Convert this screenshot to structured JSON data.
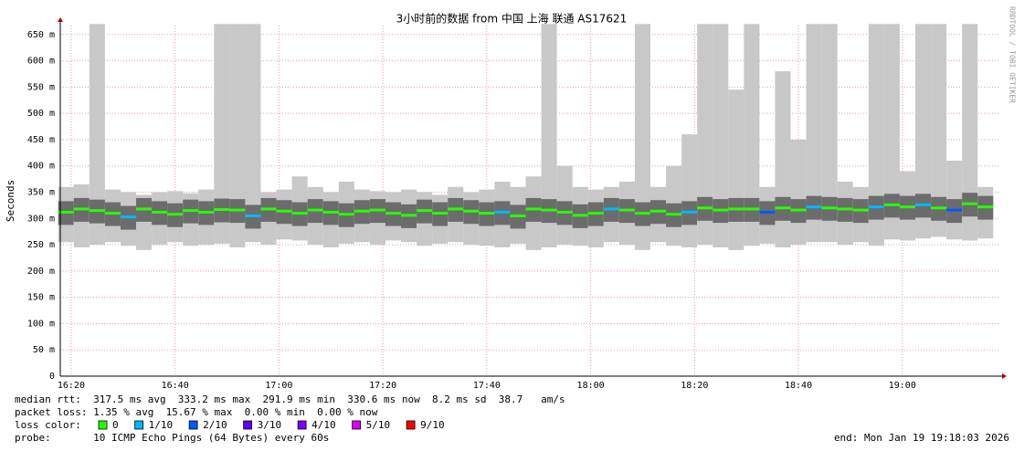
{
  "chart_data": {
    "type": "smoke",
    "title": "3小时前的数据 from 中国 上海 联通 AS17621",
    "y_label": "Seconds",
    "side_text": "RRDTOOL / TOBI OETIKER",
    "xlim": [
      977.9,
      1158.5
    ],
    "xticks": [
      {
        "value": 980,
        "label": "16:20"
      },
      {
        "value": 1000,
        "label": "16:40"
      },
      {
        "value": 1020,
        "label": "17:00"
      },
      {
        "value": 1040,
        "label": "17:20"
      },
      {
        "value": 1060,
        "label": "17:40"
      },
      {
        "value": 1080,
        "label": "18:00"
      },
      {
        "value": 1100,
        "label": "18:20"
      },
      {
        "value": 1120,
        "label": "18:40"
      },
      {
        "value": 1140,
        "label": "19:00"
      }
    ],
    "ylim": [
      0,
      667
    ],
    "yticks": [
      0,
      {
        "value": 50,
        "label": "50 m"
      },
      {
        "value": 100,
        "label": "100 m"
      },
      {
        "value": 150,
        "label": "150 m"
      },
      {
        "value": 200,
        "label": "200 m"
      },
      {
        "value": 250,
        "label": "250 m"
      },
      {
        "value": 300,
        "label": "300 m"
      },
      {
        "value": 350,
        "label": "350 m"
      },
      {
        "value": 400,
        "label": "400 m"
      },
      {
        "value": 450,
        "label": "450 m"
      },
      {
        "value": 500,
        "label": "500 m"
      },
      {
        "value": 550,
        "label": "550 m"
      },
      {
        "value": 600,
        "label": "600 m"
      },
      {
        "value": 650,
        "label": "650 m"
      }
    ],
    "grid": true,
    "x": [
      979,
      982,
      985,
      988,
      991,
      994,
      997,
      1000,
      1003,
      1006,
      1009,
      1012,
      1015,
      1018,
      1021,
      1024,
      1027,
      1030,
      1033,
      1036,
      1039,
      1042,
      1045,
      1048,
      1051,
      1054,
      1057,
      1060,
      1063,
      1066,
      1069,
      1072,
      1075,
      1078,
      1081,
      1084,
      1087,
      1090,
      1093,
      1096,
      1099,
      1102,
      1105,
      1108,
      1111,
      1114,
      1117,
      1120,
      1123,
      1126,
      1129,
      1132,
      1135,
      1138,
      1141,
      1144,
      1147,
      1150,
      1153,
      1156
    ],
    "median": [
      312,
      318,
      315,
      310,
      303,
      318,
      312,
      308,
      315,
      312,
      317,
      316,
      305,
      318,
      314,
      310,
      316,
      312,
      308,
      314,
      316,
      310,
      306,
      315,
      310,
      318,
      314,
      310,
      312,
      305,
      318,
      316,
      312,
      306,
      310,
      318,
      316,
      310,
      314,
      308,
      312,
      320,
      316,
      318,
      318,
      312,
      320,
      316,
      322,
      320,
      318,
      316,
      322,
      326,
      322,
      326,
      320,
      316,
      328,
      322
    ],
    "smoke_low": [
      255,
      245,
      250,
      255,
      248,
      240,
      250,
      255,
      248,
      250,
      252,
      245,
      255,
      250,
      260,
      258,
      250,
      245,
      252,
      255,
      250,
      258,
      255,
      248,
      252,
      255,
      250,
      248,
      245,
      252,
      240,
      245,
      250,
      248,
      245,
      255,
      250,
      240,
      255,
      248,
      245,
      250,
      245,
      240,
      248,
      252,
      245,
      250,
      255,
      255,
      250,
      255,
      248,
      260,
      258,
      262,
      265,
      260,
      258,
      262
    ],
    "smoke_high": [
      360,
      365,
      670,
      355,
      350,
      345,
      350,
      352,
      348,
      355,
      670,
      670,
      670,
      350,
      355,
      380,
      360,
      350,
      370,
      355,
      352,
      350,
      355,
      350,
      345,
      360,
      350,
      355,
      370,
      360,
      380,
      670,
      400,
      360,
      355,
      360,
      370,
      670,
      360,
      400,
      460,
      670,
      670,
      545,
      670,
      360,
      580,
      450,
      670,
      670,
      370,
      360,
      670,
      670,
      390,
      670,
      670,
      410,
      670,
      360
    ],
    "loss": [
      0,
      0,
      0,
      0,
      1,
      0,
      0,
      0,
      0,
      0,
      0,
      0,
      1,
      0,
      0,
      0,
      0,
      0,
      0,
      0,
      0,
      0,
      0,
      0,
      0,
      0,
      0,
      0,
      1,
      0,
      0,
      0,
      0,
      0,
      0,
      1,
      0,
      0,
      0,
      0,
      1,
      0,
      0,
      0,
      0,
      2,
      0,
      0,
      1,
      0,
      0,
      0,
      1,
      0,
      0,
      1,
      0,
      2,
      0,
      0
    ],
    "legend_title": "loss color:",
    "legend": [
      {
        "name": "0",
        "color": "#26ff00"
      },
      {
        "name": "1/10",
        "color": "#00b8ff"
      },
      {
        "name": "2/10",
        "color": "#0059ff"
      },
      {
        "name": "3/10",
        "color": "#5e00ff"
      },
      {
        "name": "4/10",
        "color": "#7e00ff"
      },
      {
        "name": "5/10",
        "color": "#dd00ff"
      },
      {
        "name": "9/10",
        "color": "#ff0000"
      }
    ],
    "stats": [
      "median rtt:  317.5 ms avg  333.2 ms max  291.9 ms min  330.6 ms now  8.2 ms sd  38.7   am/s",
      "packet loss: 1.35 % avg  15.67 % max  0.00 % min  0.00 % now"
    ],
    "probe": "probe:       10 ICMP Echo Pings (64 Bytes) every 60s",
    "end": "end: Mon Jan 19 19:18:03 2026"
  }
}
